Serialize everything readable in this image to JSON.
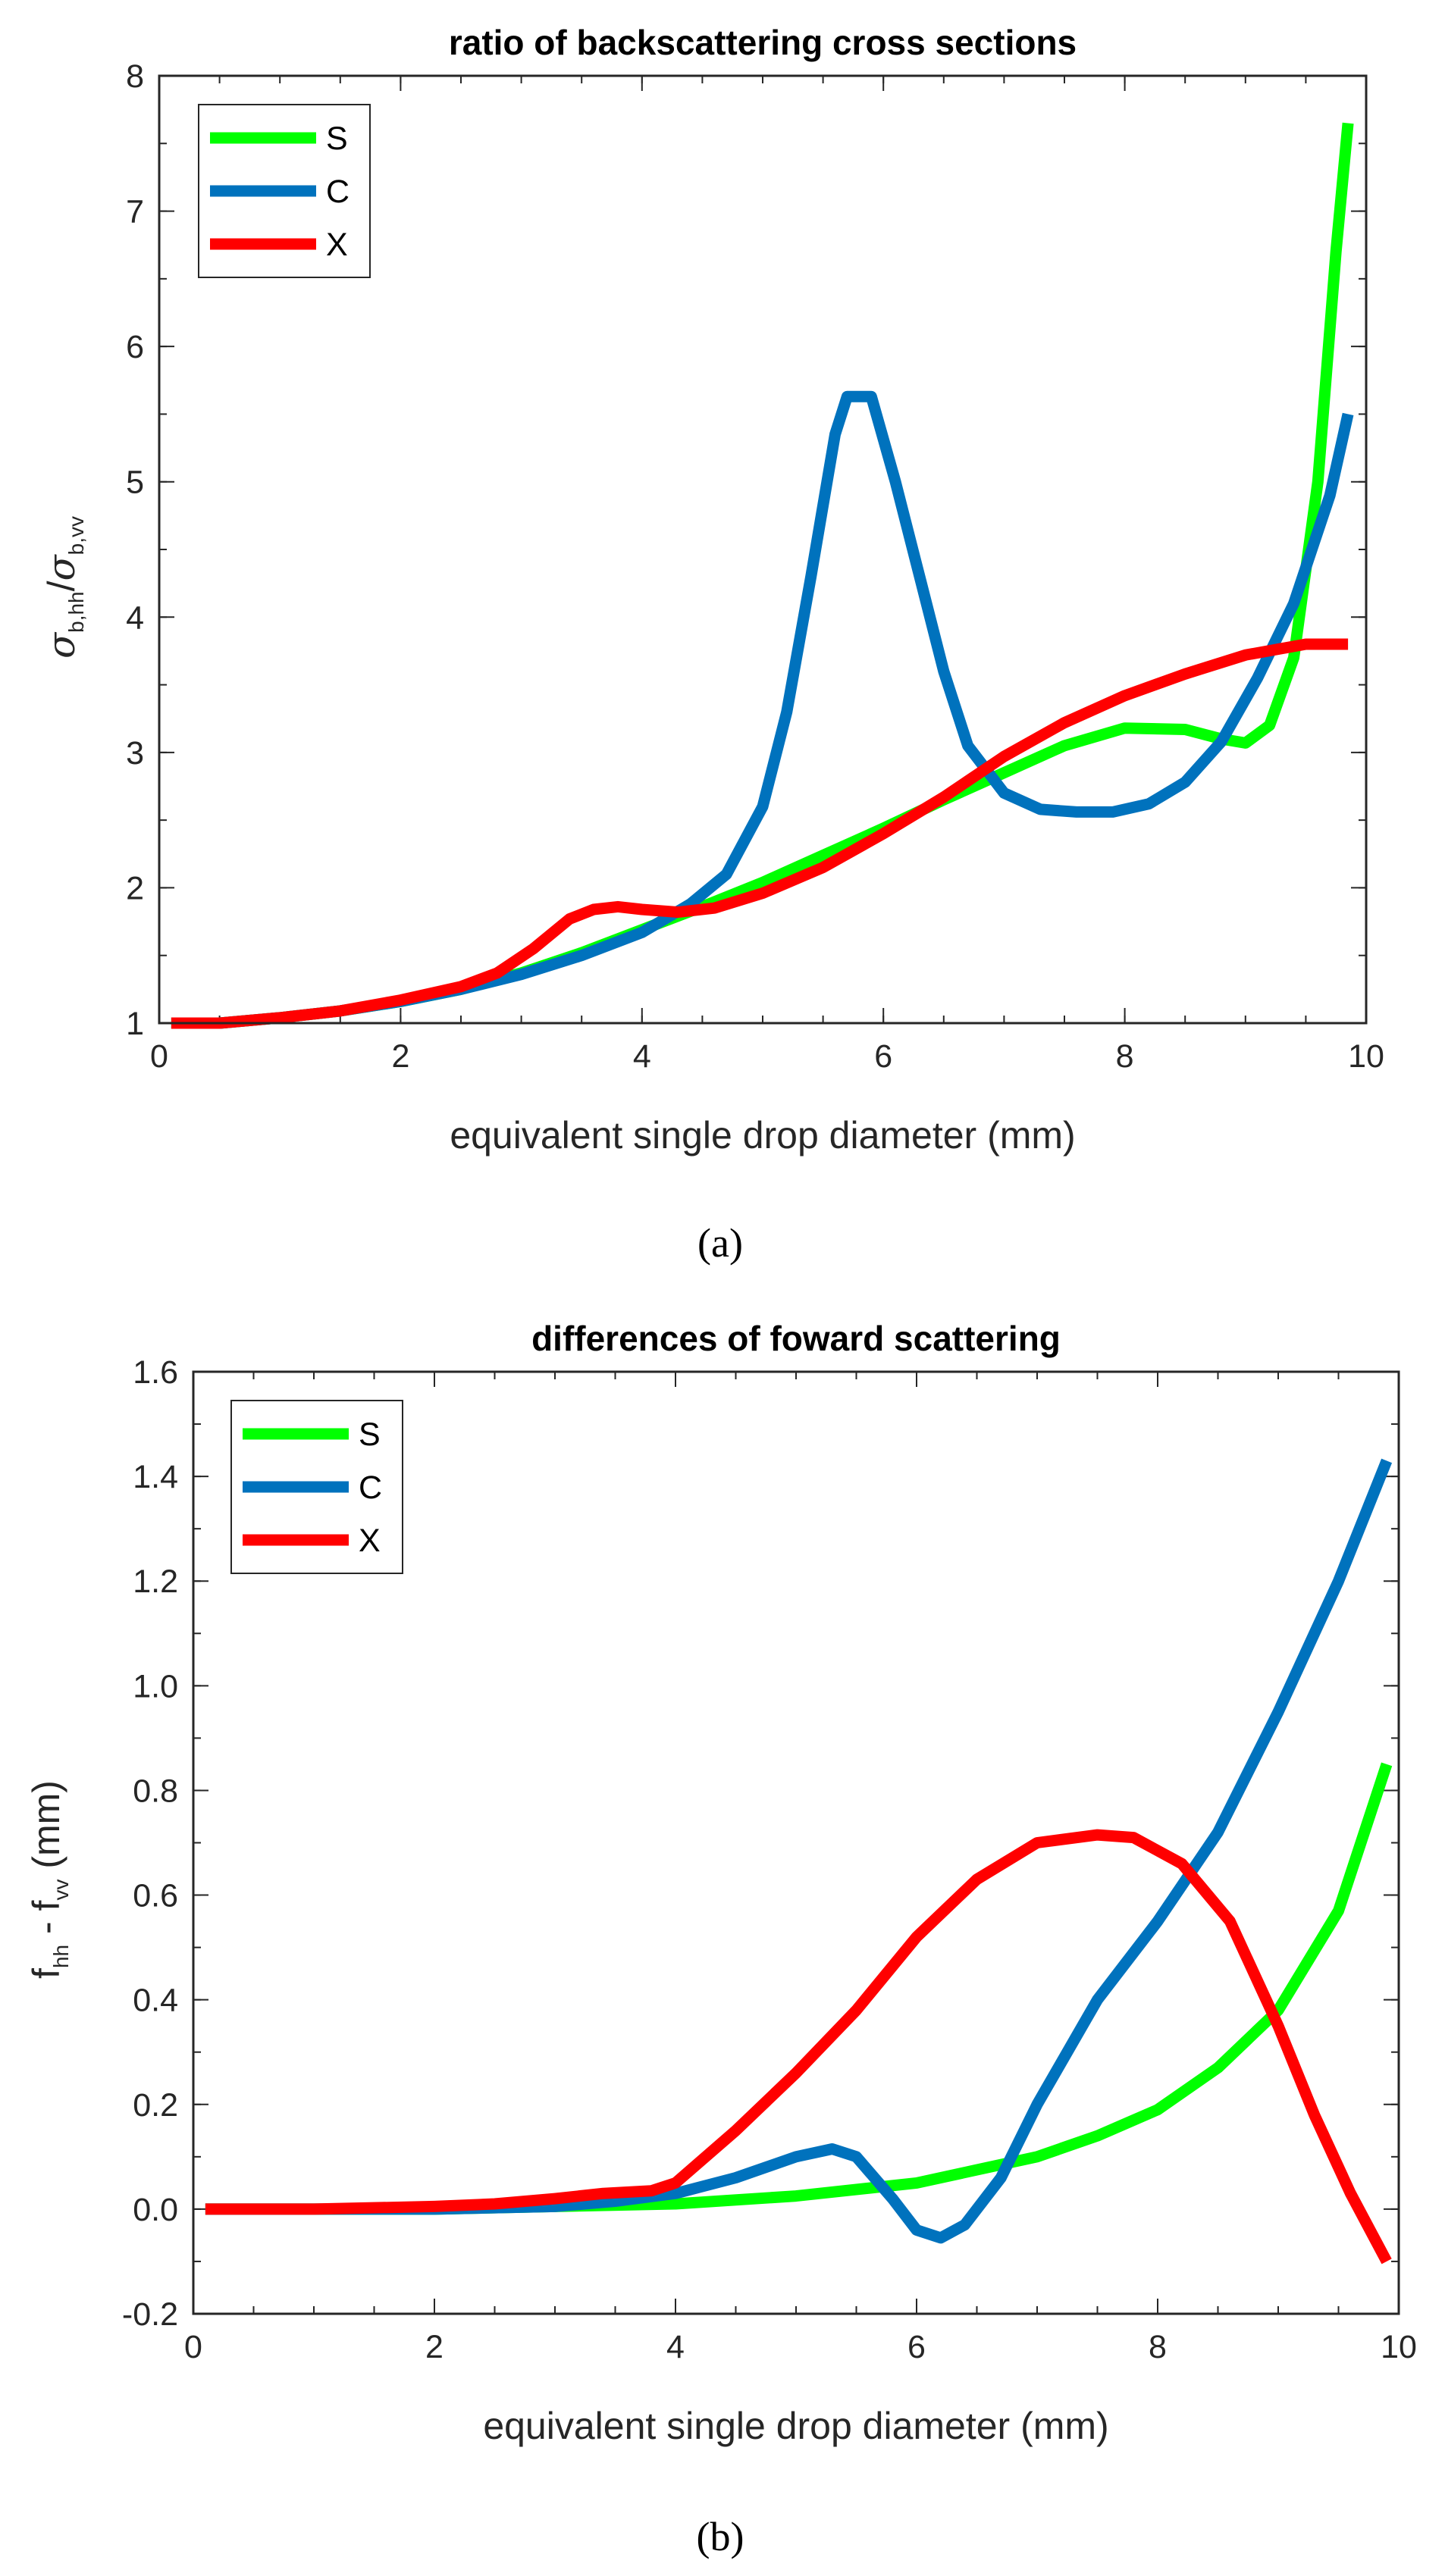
{
  "chart_data": [
    {
      "type": "line",
      "title": "ratio of backscattering cross sections",
      "xlabel": "equivalent single drop diameter (mm)",
      "ylabel": {
        "sym1": "σ",
        "sub1": "b,hh",
        "slash": "/",
        "sym2": "σ",
        "sub2": "b,vv"
      },
      "xlim": [
        0,
        10
      ],
      "ylim": [
        1,
        8
      ],
      "xticks": [
        "0",
        "2",
        "4",
        "6",
        "8",
        "10"
      ],
      "yticks": [
        "1",
        "2",
        "3",
        "4",
        "5",
        "6",
        "7",
        "8"
      ],
      "legend": [
        "S",
        "C",
        "X"
      ],
      "legend_position": "top-left",
      "caption": "(a)",
      "series": [
        {
          "name": "S",
          "color": "#00ff00",
          "x": [
            0.1,
            0.5,
            1,
            1.5,
            2,
            2.5,
            3,
            3.5,
            4,
            4.5,
            5,
            5.5,
            6,
            6.5,
            7,
            7.5,
            8,
            8.5,
            8.8,
            9.0,
            9.2,
            9.4,
            9.6,
            9.75,
            9.85
          ],
          "y": [
            1.0,
            1.0,
            1.04,
            1.09,
            1.16,
            1.25,
            1.37,
            1.52,
            1.69,
            1.86,
            2.04,
            2.24,
            2.44,
            2.65,
            2.85,
            3.05,
            3.18,
            3.17,
            3.1,
            3.07,
            3.2,
            3.7,
            5.0,
            6.7,
            7.65
          ]
        },
        {
          "name": "C",
          "color": "#0072bd",
          "x": [
            0.1,
            0.5,
            1,
            1.5,
            2,
            2.5,
            3,
            3.5,
            4,
            4.4,
            4.7,
            5.0,
            5.2,
            5.4,
            5.6,
            5.7,
            5.9,
            6.1,
            6.3,
            6.5,
            6.7,
            7.0,
            7.3,
            7.6,
            7.9,
            8.2,
            8.5,
            8.8,
            9.1,
            9.4,
            9.7,
            9.85
          ],
          "y": [
            1.0,
            1.0,
            1.04,
            1.09,
            1.16,
            1.25,
            1.36,
            1.5,
            1.67,
            1.88,
            2.1,
            2.6,
            3.3,
            4.3,
            5.35,
            5.63,
            5.63,
            5.0,
            4.3,
            3.6,
            3.05,
            2.7,
            2.58,
            2.56,
            2.56,
            2.62,
            2.78,
            3.08,
            3.55,
            4.1,
            4.9,
            5.5
          ]
        },
        {
          "name": "X",
          "color": "#ff0000",
          "x": [
            0.1,
            0.5,
            1,
            1.5,
            2,
            2.5,
            2.8,
            3.1,
            3.4,
            3.6,
            3.8,
            4.0,
            4.3,
            4.6,
            5.0,
            5.5,
            6.0,
            6.5,
            7.0,
            7.5,
            8.0,
            8.5,
            9.0,
            9.5,
            9.85
          ],
          "y": [
            1.0,
            1.0,
            1.04,
            1.09,
            1.17,
            1.27,
            1.37,
            1.55,
            1.77,
            1.84,
            1.86,
            1.84,
            1.82,
            1.85,
            1.96,
            2.15,
            2.4,
            2.67,
            2.97,
            3.22,
            3.42,
            3.58,
            3.72,
            3.8,
            3.8
          ]
        }
      ]
    },
    {
      "type": "line",
      "title": "differences of foward scattering",
      "xlabel": "equivalent single drop diameter (mm)",
      "ylabel": {
        "t1": "f",
        "sub1": "hh",
        "mid": " - f",
        "sub2": "vv",
        "end": " (mm)"
      },
      "xlim": [
        0,
        10
      ],
      "ylim": [
        -0.2,
        1.6
      ],
      "xticks": [
        "0",
        "2",
        "4",
        "6",
        "8",
        "10"
      ],
      "yticks": [
        "-0.2",
        "0.0",
        "0.2",
        "0.4",
        "0.6",
        "0.8",
        "1.0",
        "1.2",
        "1.4",
        "1.6"
      ],
      "legend": [
        "S",
        "C",
        "X"
      ],
      "legend_position": "top-left",
      "caption": "(b)",
      "series": [
        {
          "name": "S",
          "color": "#00ff00",
          "x": [
            0.1,
            1,
            2,
            3,
            4,
            5,
            6,
            6.5,
            7,
            7.5,
            8,
            8.5,
            9,
            9.5,
            9.9
          ],
          "y": [
            0,
            0,
            0,
            0.005,
            0.01,
            0.025,
            0.05,
            0.075,
            0.1,
            0.14,
            0.19,
            0.27,
            0.38,
            0.57,
            0.85
          ]
        },
        {
          "name": "C",
          "color": "#0072bd",
          "x": [
            0.1,
            1,
            2,
            3,
            3.5,
            4,
            4.5,
            5.0,
            5.3,
            5.5,
            5.8,
            6.0,
            6.2,
            6.4,
            6.7,
            7.0,
            7.5,
            8.0,
            8.5,
            9.0,
            9.5,
            9.9
          ],
          "y": [
            0,
            0,
            0,
            0.005,
            0.015,
            0.03,
            0.06,
            0.1,
            0.115,
            0.1,
            0.02,
            -0.04,
            -0.055,
            -0.03,
            0.06,
            0.2,
            0.4,
            0.55,
            0.72,
            0.95,
            1.2,
            1.43
          ]
        },
        {
          "name": "X",
          "color": "#ff0000",
          "x": [
            0.1,
            1,
            2,
            2.5,
            3,
            3.4,
            3.8,
            4.0,
            4.5,
            5.0,
            5.5,
            6.0,
            6.5,
            7.0,
            7.5,
            7.8,
            8.2,
            8.6,
            9.0,
            9.3,
            9.6,
            9.9
          ],
          "y": [
            0,
            0,
            0.005,
            0.01,
            0.02,
            0.03,
            0.035,
            0.05,
            0.15,
            0.26,
            0.38,
            0.52,
            0.63,
            0.7,
            0.715,
            0.71,
            0.66,
            0.55,
            0.35,
            0.18,
            0.03,
            -0.1
          ]
        }
      ]
    }
  ]
}
